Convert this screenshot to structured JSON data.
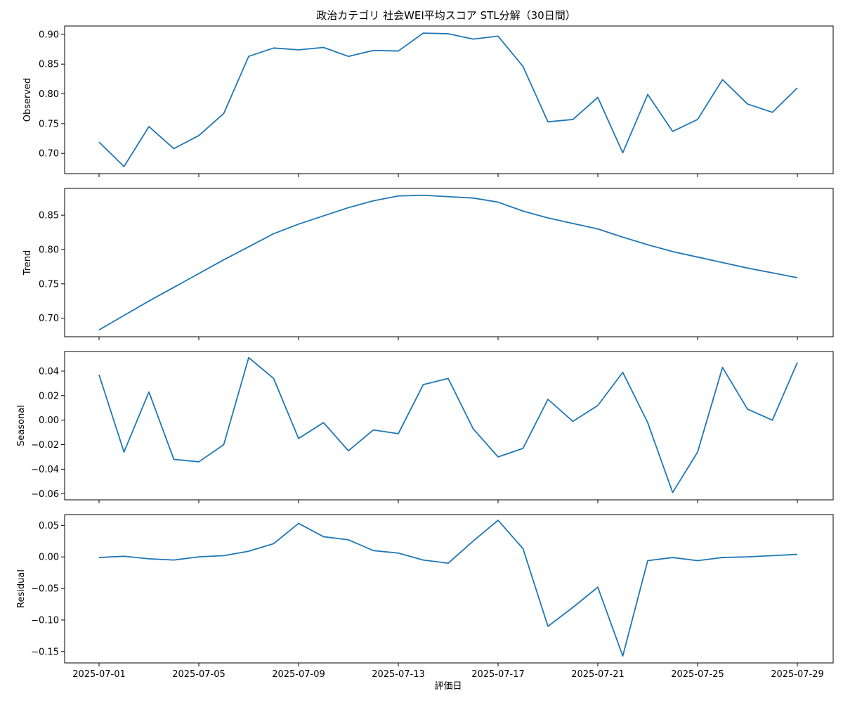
{
  "chart_data": {
    "type": "line",
    "title": "政治カテゴリ 社会WEI平均スコア STL分解（30日間）",
    "xlabel": "評価日",
    "line_color": "#1f77b4",
    "grid": false,
    "x_ticks": [
      "2025-07-01",
      "2025-07-05",
      "2025-07-09",
      "2025-07-13",
      "2025-07-17",
      "2025-07-21",
      "2025-07-25",
      "2025-07-29"
    ],
    "x": [
      "2025-07-01",
      "2025-07-02",
      "2025-07-03",
      "2025-07-04",
      "2025-07-05",
      "2025-07-06",
      "2025-07-07",
      "2025-07-08",
      "2025-07-09",
      "2025-07-10",
      "2025-07-11",
      "2025-07-12",
      "2025-07-13",
      "2025-07-14",
      "2025-07-15",
      "2025-07-16",
      "2025-07-17",
      "2025-07-18",
      "2025-07-19",
      "2025-07-20",
      "2025-07-21",
      "2025-07-22",
      "2025-07-23",
      "2025-07-24",
      "2025-07-25",
      "2025-07-26",
      "2025-07-27",
      "2025-07-28",
      "2025-07-29"
    ],
    "panels": [
      {
        "ylabel": "Observed",
        "ylim": [
          0.666,
          0.914
        ],
        "yticks": [
          0.7,
          0.75,
          0.8,
          0.85,
          0.9
        ],
        "ytick_labels": [
          "0.70",
          "0.75",
          "0.80",
          "0.85",
          "0.90"
        ],
        "values": [
          0.719,
          0.678,
          0.745,
          0.708,
          0.73,
          0.767,
          0.863,
          0.877,
          0.874,
          0.878,
          0.863,
          0.873,
          0.872,
          0.902,
          0.901,
          0.892,
          0.897,
          0.846,
          0.753,
          0.757,
          0.794,
          0.701,
          0.799,
          0.737,
          0.757,
          0.824,
          0.783,
          0.769,
          0.81
        ]
      },
      {
        "ylabel": "Trend",
        "ylim": [
          0.673,
          0.889
        ],
        "yticks": [
          0.7,
          0.75,
          0.8,
          0.85
        ],
        "ytick_labels": [
          "0.70",
          "0.75",
          "0.80",
          "0.85"
        ],
        "values": [
          0.683,
          0.704,
          0.725,
          0.745,
          0.765,
          0.785,
          0.804,
          0.823,
          0.837,
          0.849,
          0.861,
          0.871,
          0.878,
          0.879,
          0.877,
          0.875,
          0.869,
          0.856,
          0.846,
          0.838,
          0.83,
          0.818,
          0.807,
          0.797,
          0.789,
          0.781,
          0.773,
          0.766,
          0.759
        ]
      },
      {
        "ylabel": "Seasonal",
        "ylim": [
          -0.065,
          0.056
        ],
        "yticks": [
          -0.06,
          -0.04,
          -0.02,
          0.0,
          0.02,
          0.04
        ],
        "ytick_labels": [
          "−0.06",
          "−0.04",
          "−0.02",
          "0.00",
          "0.02",
          "0.04"
        ],
        "values": [
          0.037,
          -0.026,
          0.023,
          -0.032,
          -0.034,
          -0.02,
          0.051,
          0.034,
          -0.015,
          -0.002,
          -0.025,
          -0.008,
          -0.011,
          0.029,
          0.034,
          -0.007,
          -0.03,
          -0.023,
          0.017,
          -0.001,
          0.012,
          0.039,
          -0.002,
          -0.059,
          -0.026,
          0.043,
          0.009,
          -0.0,
          0.047
        ]
      },
      {
        "ylabel": "Residual",
        "ylim": [
          -0.168,
          0.067
        ],
        "yticks": [
          -0.15,
          -0.1,
          -0.05,
          0.0,
          0.05
        ],
        "ytick_labels": [
          "−0.15",
          "−0.10",
          "−0.05",
          "0.00",
          "0.05"
        ],
        "values": [
          -0.001,
          0.001,
          -0.003,
          -0.005,
          0.0,
          0.002,
          0.009,
          0.021,
          0.053,
          0.032,
          0.027,
          0.01,
          0.006,
          -0.005,
          -0.01,
          0.025,
          0.058,
          0.013,
          -0.11,
          -0.08,
          -0.048,
          -0.157,
          -0.006,
          -0.001,
          -0.006,
          -0.001,
          0.0,
          0.002,
          0.004
        ]
      }
    ]
  }
}
